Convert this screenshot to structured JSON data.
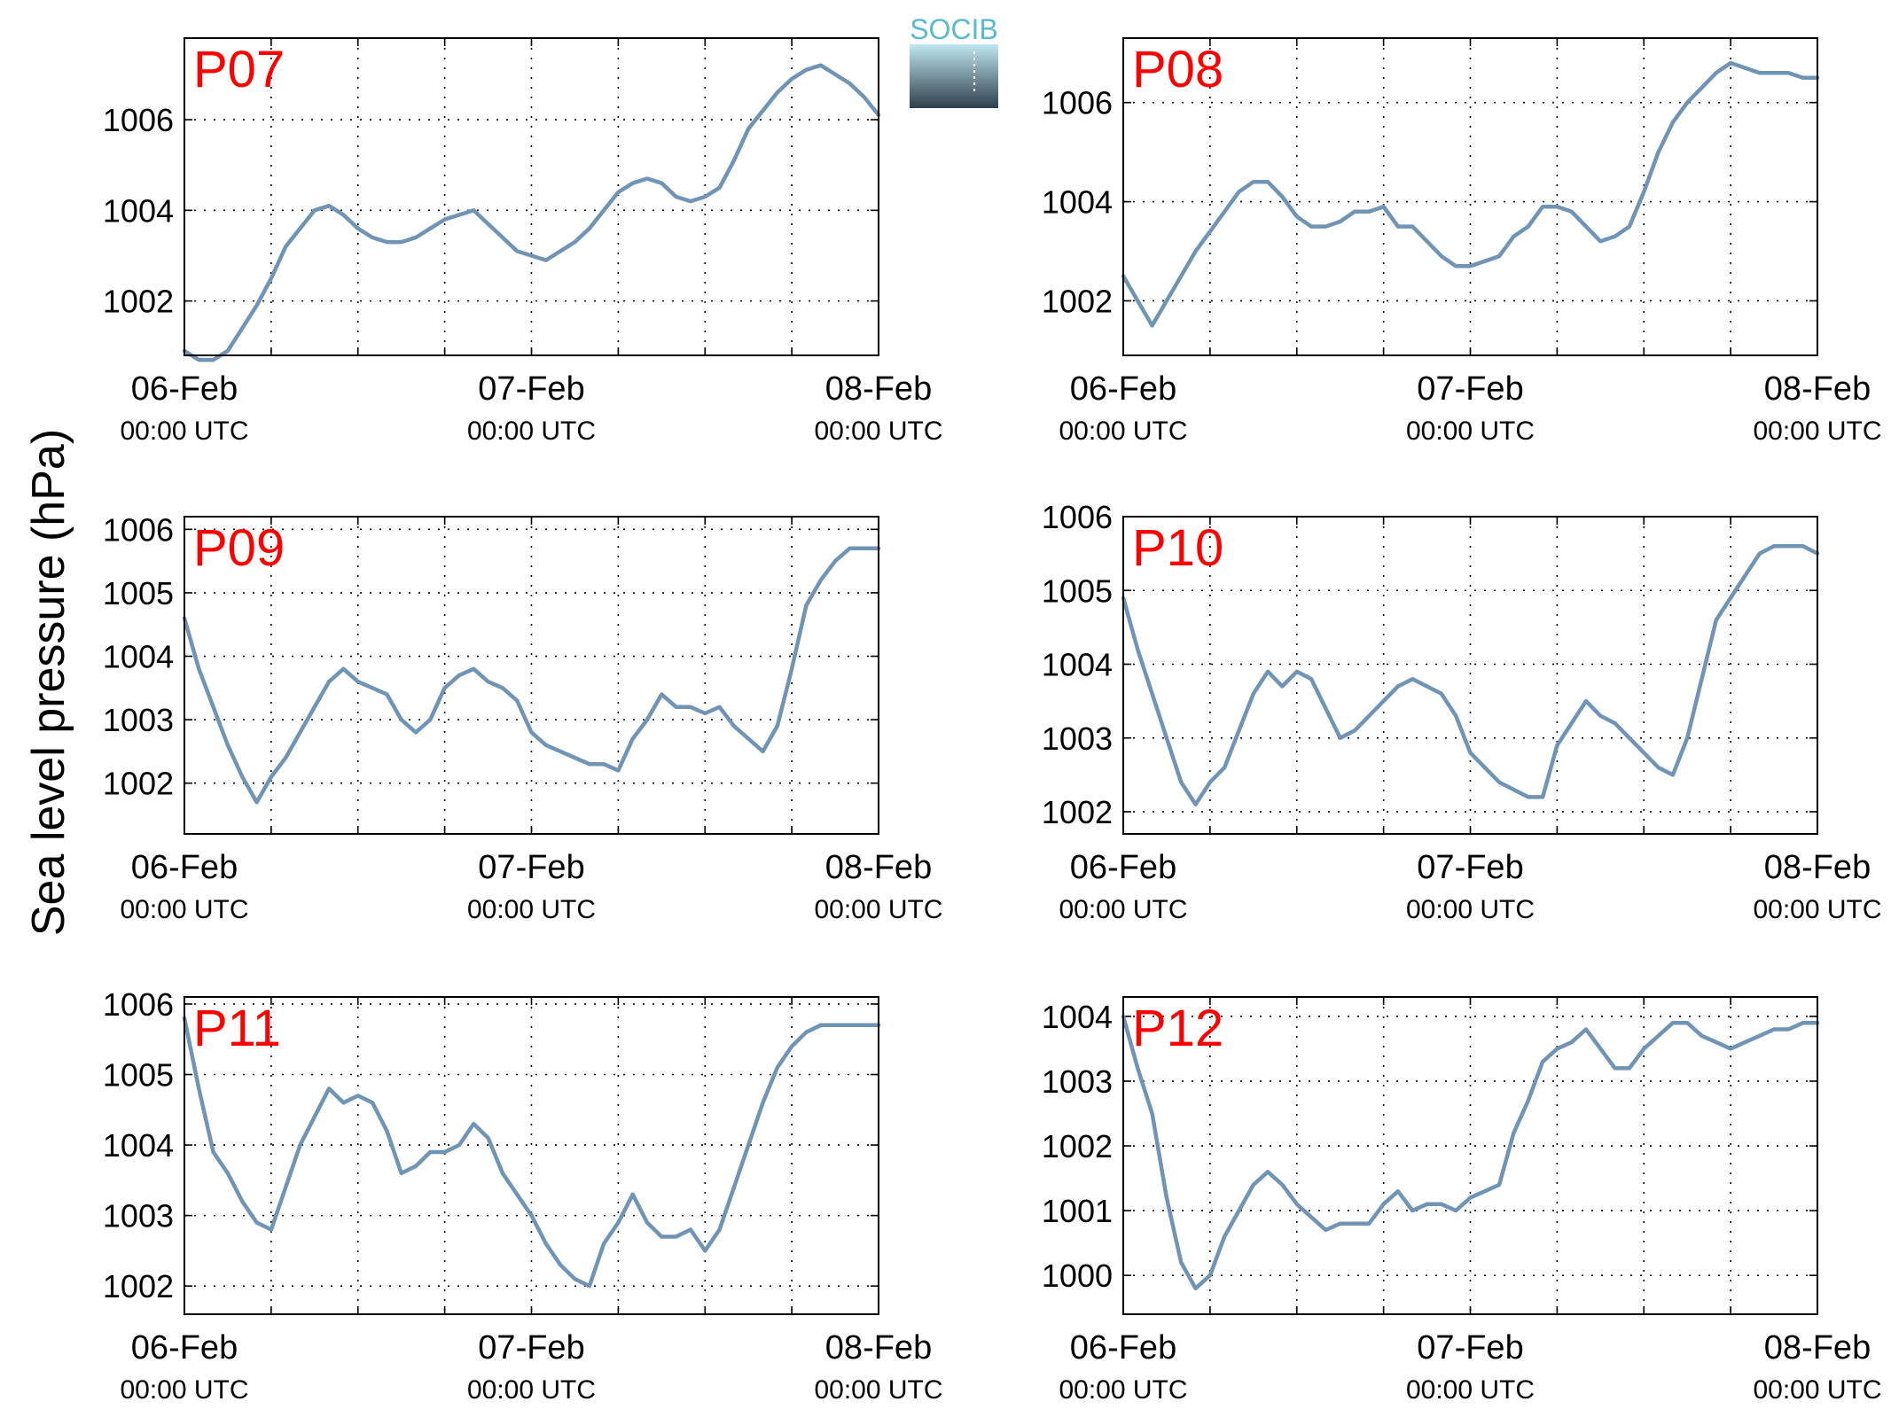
{
  "figure": {
    "ylabel": "Sea level pressure (hPa)",
    "logo_text": "SOCIB",
    "colors": {
      "line": "#6f94b5",
      "panel_label": "#ff0000",
      "axis": "#000000",
      "grid": "#000000"
    },
    "x_ticks": [
      {
        "day": 0,
        "date": "06-Feb",
        "time": "00:00 UTC"
      },
      {
        "day": 1,
        "date": "07-Feb",
        "time": "00:00 UTC"
      },
      {
        "day": 2,
        "date": "08-Feb",
        "time": "00:00 UTC"
      }
    ],
    "x_minor_grid_hours": 6
  },
  "chart_data": [
    {
      "type": "line",
      "label": "P07",
      "xlim_days": [
        0,
        2
      ],
      "ylim": [
        1000.8,
        1007.8
      ],
      "yticks": [
        1002,
        1004,
        1006
      ],
      "x_hours": [
        0,
        1,
        2,
        3,
        4,
        5,
        6,
        7,
        8,
        9,
        10,
        11,
        12,
        13,
        14,
        15,
        16,
        17,
        18,
        19,
        20,
        21,
        22,
        23,
        24,
        25,
        26,
        27,
        28,
        29,
        30,
        31,
        32,
        33,
        34,
        35,
        36,
        37,
        38,
        39,
        40,
        41,
        42,
        43,
        44,
        45,
        46,
        47,
        48
      ],
      "values": [
        1000.9,
        1000.7,
        1000.7,
        1000.9,
        1001.4,
        1001.9,
        1002.5,
        1003.2,
        1003.6,
        1004.0,
        1004.1,
        1003.9,
        1003.6,
        1003.4,
        1003.3,
        1003.3,
        1003.4,
        1003.6,
        1003.8,
        1003.9,
        1004.0,
        1003.7,
        1003.4,
        1003.1,
        1003.0,
        1002.9,
        1003.1,
        1003.3,
        1003.6,
        1004.0,
        1004.4,
        1004.6,
        1004.7,
        1004.6,
        1004.3,
        1004.2,
        1004.3,
        1004.5,
        1005.1,
        1005.8,
        1006.2,
        1006.6,
        1006.9,
        1007.1,
        1007.2,
        1007.0,
        1006.8,
        1006.5,
        1006.1
      ]
    },
    {
      "type": "line",
      "label": "P08",
      "xlim_days": [
        0,
        2
      ],
      "ylim": [
        1000.9,
        1007.3
      ],
      "yticks": [
        1002,
        1004,
        1006
      ],
      "x_hours": [
        0,
        1,
        2,
        3,
        4,
        5,
        6,
        7,
        8,
        9,
        10,
        11,
        12,
        13,
        14,
        15,
        16,
        17,
        18,
        19,
        20,
        21,
        22,
        23,
        24,
        25,
        26,
        27,
        28,
        29,
        30,
        31,
        32,
        33,
        34,
        35,
        36,
        37,
        38,
        39,
        40,
        41,
        42,
        43,
        44,
        45,
        46,
        47,
        48
      ],
      "values": [
        1002.5,
        1002.0,
        1001.5,
        1002.0,
        1002.5,
        1003.0,
        1003.4,
        1003.8,
        1004.2,
        1004.4,
        1004.4,
        1004.1,
        1003.7,
        1003.5,
        1003.5,
        1003.6,
        1003.8,
        1003.8,
        1003.9,
        1003.5,
        1003.5,
        1003.2,
        1002.9,
        1002.7,
        1002.7,
        1002.8,
        1002.9,
        1003.3,
        1003.5,
        1003.9,
        1003.9,
        1003.8,
        1003.5,
        1003.2,
        1003.3,
        1003.5,
        1004.2,
        1005.0,
        1005.6,
        1006.0,
        1006.3,
        1006.6,
        1006.8,
        1006.7,
        1006.6,
        1006.6,
        1006.6,
        1006.5,
        1006.5
      ]
    },
    {
      "type": "line",
      "label": "P09",
      "xlim_days": [
        0,
        2
      ],
      "ylim": [
        1001.2,
        1006.2
      ],
      "yticks": [
        1002,
        1003,
        1004,
        1005,
        1006
      ],
      "x_hours": [
        0,
        1,
        2,
        3,
        4,
        5,
        6,
        7,
        8,
        9,
        10,
        11,
        12,
        13,
        14,
        15,
        16,
        17,
        18,
        19,
        20,
        21,
        22,
        23,
        24,
        25,
        26,
        27,
        28,
        29,
        30,
        31,
        32,
        33,
        34,
        35,
        36,
        37,
        38,
        39,
        40,
        41,
        42,
        43,
        44,
        45,
        46,
        47,
        48
      ],
      "values": [
        1004.6,
        1003.8,
        1003.2,
        1002.6,
        1002.1,
        1001.7,
        1002.1,
        1002.4,
        1002.8,
        1003.2,
        1003.6,
        1003.8,
        1003.6,
        1003.5,
        1003.4,
        1003.0,
        1002.8,
        1003.0,
        1003.5,
        1003.7,
        1003.8,
        1003.6,
        1003.5,
        1003.3,
        1002.8,
        1002.6,
        1002.5,
        1002.4,
        1002.3,
        1002.3,
        1002.2,
        1002.7,
        1003.0,
        1003.4,
        1003.2,
        1003.2,
        1003.1,
        1003.2,
        1002.9,
        1002.7,
        1002.5,
        1002.9,
        1003.8,
        1004.8,
        1005.2,
        1005.5,
        1005.7,
        1005.7,
        1005.7
      ]
    },
    {
      "type": "line",
      "label": "P10",
      "xlim_days": [
        0,
        2
      ],
      "ylim": [
        1001.7,
        1006.0
      ],
      "yticks": [
        1002,
        1003,
        1004,
        1005,
        1006
      ],
      "x_hours": [
        0,
        1,
        2,
        3,
        4,
        5,
        6,
        7,
        8,
        9,
        10,
        11,
        12,
        13,
        14,
        15,
        16,
        17,
        18,
        19,
        20,
        21,
        22,
        23,
        24,
        25,
        26,
        27,
        28,
        29,
        30,
        31,
        32,
        33,
        34,
        35,
        36,
        37,
        38,
        39,
        40,
        41,
        42,
        43,
        44,
        45,
        46,
        47,
        48
      ],
      "values": [
        1004.9,
        1004.2,
        1003.6,
        1003.0,
        1002.4,
        1002.1,
        1002.4,
        1002.6,
        1003.1,
        1003.6,
        1003.9,
        1003.7,
        1003.9,
        1003.8,
        1003.4,
        1003.0,
        1003.1,
        1003.3,
        1003.5,
        1003.7,
        1003.8,
        1003.7,
        1003.6,
        1003.3,
        1002.8,
        1002.6,
        1002.4,
        1002.3,
        1002.2,
        1002.2,
        1002.9,
        1003.2,
        1003.5,
        1003.3,
        1003.2,
        1003.0,
        1002.8,
        1002.6,
        1002.5,
        1003.0,
        1003.8,
        1004.6,
        1004.9,
        1005.2,
        1005.5,
        1005.6,
        1005.6,
        1005.6,
        1005.5
      ]
    },
    {
      "type": "line",
      "label": "P11",
      "xlim_days": [
        0,
        2
      ],
      "ylim": [
        1001.6,
        1006.1
      ],
      "yticks": [
        1002,
        1003,
        1004,
        1005,
        1006
      ],
      "x_hours": [
        0,
        1,
        2,
        3,
        4,
        5,
        6,
        7,
        8,
        9,
        10,
        11,
        12,
        13,
        14,
        15,
        16,
        17,
        18,
        19,
        20,
        21,
        22,
        23,
        24,
        25,
        26,
        27,
        28,
        29,
        30,
        31,
        32,
        33,
        34,
        35,
        36,
        37,
        38,
        39,
        40,
        41,
        42,
        43,
        44,
        45,
        46,
        47,
        48
      ],
      "values": [
        1005.8,
        1004.8,
        1003.9,
        1003.6,
        1003.2,
        1002.9,
        1002.8,
        1003.4,
        1004.0,
        1004.4,
        1004.8,
        1004.6,
        1004.7,
        1004.6,
        1004.2,
        1003.6,
        1003.7,
        1003.9,
        1003.9,
        1004.0,
        1004.3,
        1004.1,
        1003.6,
        1003.3,
        1003.0,
        1002.6,
        1002.3,
        1002.1,
        1002.0,
        1002.6,
        1002.9,
        1003.3,
        1002.9,
        1002.7,
        1002.7,
        1002.8,
        1002.5,
        1002.8,
        1003.4,
        1004.0,
        1004.6,
        1005.1,
        1005.4,
        1005.6,
        1005.7,
        1005.7,
        1005.7,
        1005.7,
        1005.7
      ]
    },
    {
      "type": "line",
      "label": "P12",
      "xlim_days": [
        0,
        2
      ],
      "ylim": [
        999.4,
        1004.3
      ],
      "yticks": [
        1000,
        1001,
        1002,
        1003,
        1004
      ],
      "x_hours": [
        0,
        1,
        2,
        3,
        4,
        5,
        6,
        7,
        8,
        9,
        10,
        11,
        12,
        13,
        14,
        15,
        16,
        17,
        18,
        19,
        20,
        21,
        22,
        23,
        24,
        25,
        26,
        27,
        28,
        29,
        30,
        31,
        32,
        33,
        34,
        35,
        36,
        37,
        38,
        39,
        40,
        41,
        42,
        43,
        44,
        45,
        46,
        47,
        48
      ],
      "values": [
        1004.0,
        1003.2,
        1002.5,
        1001.2,
        1000.2,
        999.8,
        1000.0,
        1000.6,
        1001.0,
        1001.4,
        1001.6,
        1001.4,
        1001.1,
        1000.9,
        1000.7,
        1000.8,
        1000.8,
        1000.8,
        1001.1,
        1001.3,
        1001.0,
        1001.1,
        1001.1,
        1001.0,
        1001.2,
        1001.3,
        1001.4,
        1002.2,
        1002.7,
        1003.3,
        1003.5,
        1003.6,
        1003.8,
        1003.5,
        1003.2,
        1003.2,
        1003.5,
        1003.7,
        1003.9,
        1003.9,
        1003.7,
        1003.6,
        1003.5,
        1003.6,
        1003.7,
        1003.8,
        1003.8,
        1003.9,
        1003.9
      ]
    }
  ]
}
